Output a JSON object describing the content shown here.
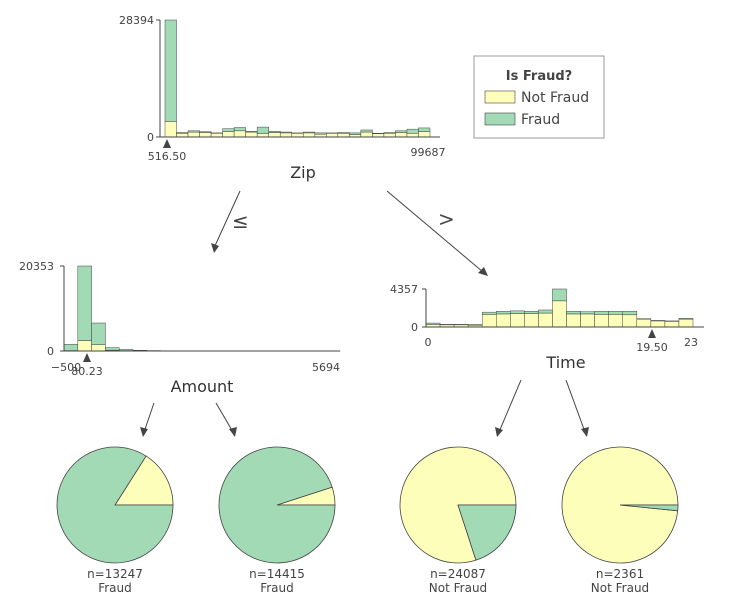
{
  "legend": {
    "title": "Is Fraud?",
    "items": [
      {
        "label": "Not Fraud",
        "color": "#fefebb"
      },
      {
        "label": "Fraud",
        "color": "#a1dab4"
      }
    ]
  },
  "colors": {
    "not_fraud": "#fefebb",
    "fraud": "#a1dab4",
    "edge": "#444444"
  },
  "chart_data": [
    {
      "type": "bar",
      "node": "root",
      "feature": "Zip",
      "xlim": [
        516.5,
        99687
      ],
      "ylim": [
        0,
        28394
      ],
      "y_tick_labels": [
        "28394",
        "0"
      ],
      "x_tick_labels": [
        "516.50",
        "99687"
      ],
      "split_label": "516.50",
      "series": [
        {
          "name": "Not Fraud",
          "values": [
            3800,
            900,
            1200,
            1100,
            900,
            1300,
            1500,
            1200,
            800,
            1100,
            1000,
            900,
            1000,
            700,
            900,
            900,
            600,
            1200,
            800,
            900,
            1100,
            900,
            1300
          ]
        },
        {
          "name": "Fraud",
          "values": [
            24594,
            200,
            300,
            200,
            100,
            700,
            800,
            200,
            1600,
            300,
            200,
            100,
            200,
            300,
            100,
            200,
            400,
            500,
            100,
            200,
            400,
            1000,
            900
          ]
        }
      ]
    },
    {
      "type": "bar",
      "node": "left",
      "feature": "Amount",
      "xlim": [
        -500,
        5694
      ],
      "ylim": [
        0,
        20353
      ],
      "y_tick_labels": [
        "20353",
        "0"
      ],
      "x_tick_labels": [
        "−500",
        "5694"
      ],
      "split_label": "80.23",
      "series": [
        {
          "name": "Not Fraud",
          "values": [
            100,
            2500,
            1500,
            200,
            80,
            30,
            20,
            15,
            10,
            8,
            6,
            5,
            4,
            3,
            3,
            2,
            2,
            2,
            1,
            1
          ]
        },
        {
          "name": "Fraud",
          "values": [
            1500,
            17853,
            5200,
            600,
            300,
            150,
            80,
            50,
            30,
            20,
            15,
            10,
            8,
            6,
            5,
            4,
            3,
            2,
            2,
            1
          ]
        }
      ]
    },
    {
      "type": "bar",
      "node": "right",
      "feature": "Time",
      "xlim": [
        0,
        23
      ],
      "ylim": [
        0,
        4357
      ],
      "y_tick_labels": [
        "4357",
        "0"
      ],
      "x_tick_labels": [
        "0",
        "19.50",
        "23"
      ],
      "split_label": "19.50",
      "series": [
        {
          "name": "Not Fraud",
          "values": [
            300,
            250,
            250,
            200,
            1450,
            1500,
            1550,
            1550,
            1600,
            3000,
            1500,
            1500,
            1450,
            1450,
            1400,
            900,
            700,
            650,
            900
          ]
        },
        {
          "name": "Fraud",
          "values": [
            150,
            50,
            50,
            100,
            250,
            300,
            300,
            250,
            350,
            1357,
            300,
            250,
            350,
            350,
            400,
            50,
            50,
            50,
            100
          ]
        }
      ]
    }
  ],
  "leaves": [
    {
      "n_label": "n=13247",
      "prediction": "Fraud",
      "fraud_fraction": 0.84
    },
    {
      "n_label": "n=14415",
      "prediction": "Fraud",
      "fraud_fraction": 0.95
    },
    {
      "n_label": "n=24087",
      "prediction": "Not Fraud",
      "fraud_fraction": 0.2
    },
    {
      "n_label": "n=2361",
      "prediction": "Not Fraud",
      "fraud_fraction": 0.016
    }
  ],
  "edges": {
    "left_label": "≤",
    "right_label": ">"
  }
}
